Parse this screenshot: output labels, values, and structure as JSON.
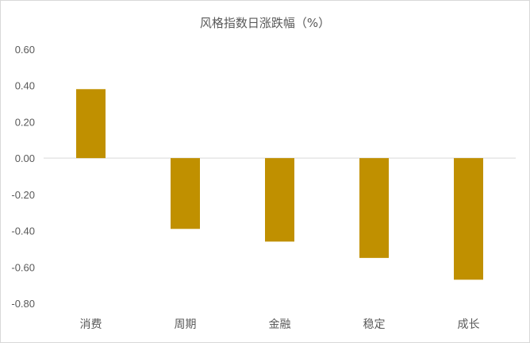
{
  "chart_data": {
    "type": "bar",
    "title": "风格指数日涨跌幅（%）",
    "categories": [
      "消费",
      "周期",
      "金融",
      "稳定",
      "成长"
    ],
    "values": [
      0.38,
      -0.39,
      -0.46,
      -0.55,
      -0.67
    ],
    "ylim": [
      -0.8,
      0.6
    ],
    "yticks": [
      "0.60",
      "0.40",
      "0.20",
      "0.00",
      "-0.20",
      "-0.40",
      "-0.60",
      "-0.80"
    ],
    "xlabel": "",
    "ylabel": "",
    "grid": false,
    "legend": "none",
    "bar_color": "#C09000"
  }
}
